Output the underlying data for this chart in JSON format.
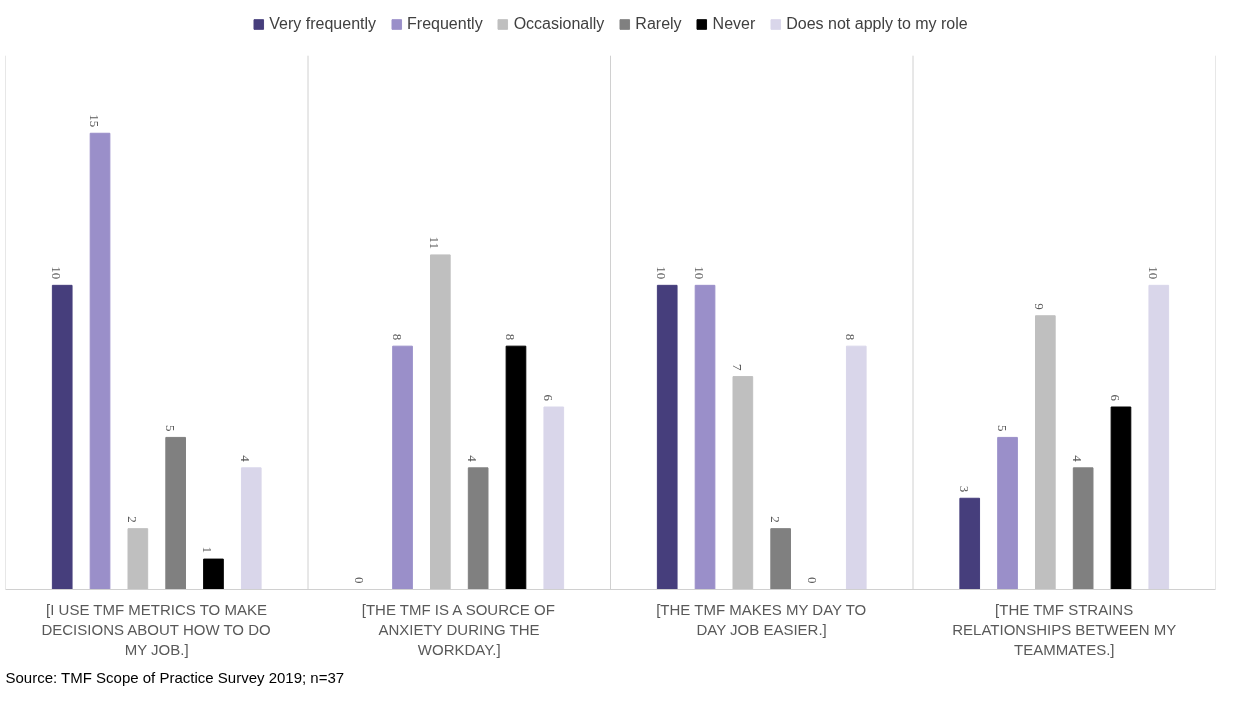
{
  "chart_data": {
    "type": "bar",
    "categories": [
      "[I USE TMF METRICS TO MAKE DECISIONS ABOUT HOW TO DO MY JOB.]",
      "[THE TMF IS A SOURCE OF ANXIETY DURING THE WORKDAY.]",
      "[THE TMF MAKES MY DAY TO DAY JOB EASIER.]",
      "[THE TMF STRAINS RELATIONSHIPS BETWEEN MY TEAMMATES.]"
    ],
    "series": [
      {
        "name": "Very frequently",
        "color": "#463e7c",
        "values": [
          10,
          0,
          10,
          3
        ]
      },
      {
        "name": "Frequently",
        "color": "#9a8fc9",
        "values": [
          15,
          8,
          10,
          5
        ]
      },
      {
        "name": "Occasionally",
        "color": "#bfbfbf",
        "values": [
          2,
          11,
          7,
          9
        ]
      },
      {
        "name": "Rarely",
        "color": "#808080",
        "values": [
          5,
          4,
          2,
          4
        ]
      },
      {
        "name": "Never",
        "color": "#000000",
        "values": [
          1,
          8,
          0,
          6
        ]
      },
      {
        "name": "Does not apply to my role",
        "color": "#d9d6ea",
        "values": [
          4,
          6,
          8,
          10
        ]
      }
    ],
    "data_labels": true,
    "legend": "top",
    "grid": false,
    "annotations": [
      "Source: TMF Scope of Practice Survey 2019; n=37"
    ]
  }
}
